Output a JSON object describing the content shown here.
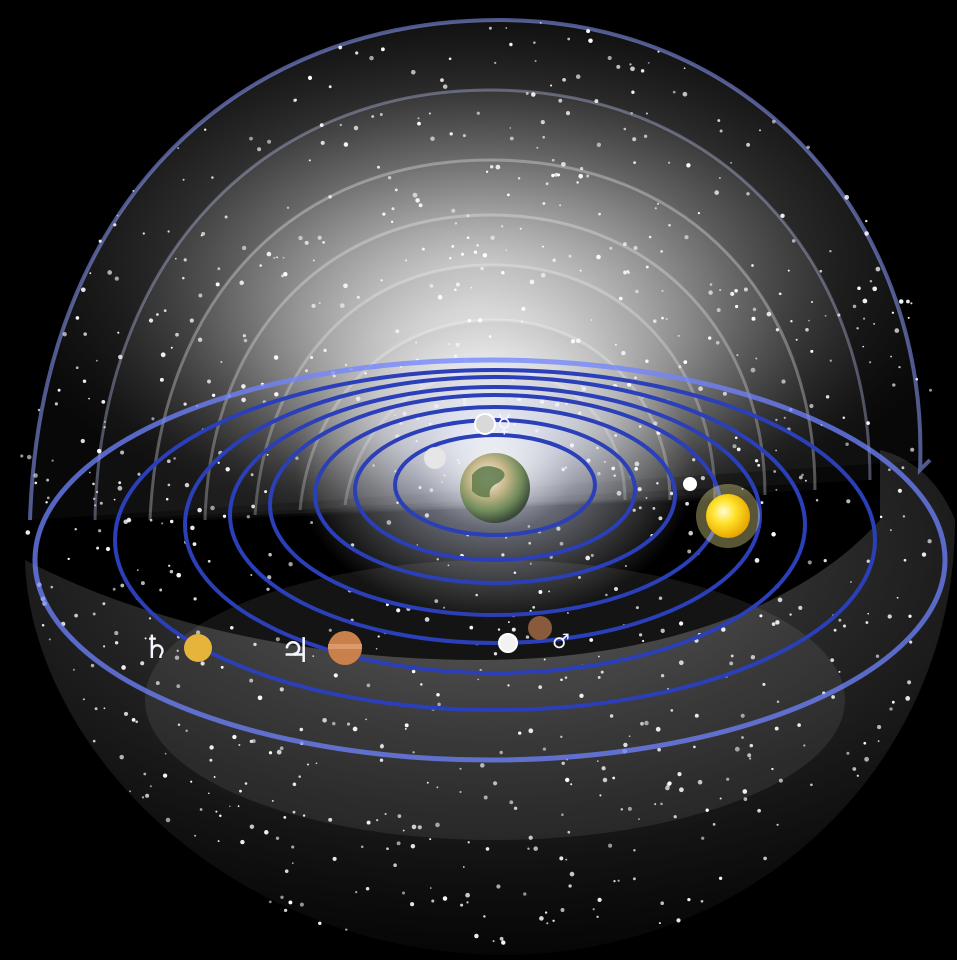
{
  "diagram": {
    "kind": "geocentric-celestial-spheres",
    "background_color": "#000000",
    "orbit_color": "#2b3fb8",
    "sphere_color": "#e8e8e8",
    "star_color": "#ffffff",
    "center_body": {
      "name": "earth",
      "colors": [
        "#7a8f5a",
        "#c8b88a",
        "#f0f0f0"
      ]
    },
    "symbols": {
      "mercury": "☿",
      "mars": "♂",
      "jupiter": "♃",
      "saturn": "♄"
    },
    "bodies": [
      {
        "name": "moon",
        "color": "#e6e6e6",
        "symbol_key": null
      },
      {
        "name": "mercury",
        "color": "#d9d9d9",
        "symbol_key": "mercury"
      },
      {
        "name": "venus",
        "color": "#f2f2f2",
        "symbol_key": null
      },
      {
        "name": "sun",
        "color": "#ffd21a",
        "symbol_key": null
      },
      {
        "name": "mars",
        "color": "#8a5a3c",
        "symbol_key": "mars"
      },
      {
        "name": "jupiter",
        "color": "#c9804a",
        "symbol_key": "jupiter"
      },
      {
        "name": "saturn",
        "color": "#e6b43a",
        "symbol_key": "saturn"
      }
    ]
  }
}
